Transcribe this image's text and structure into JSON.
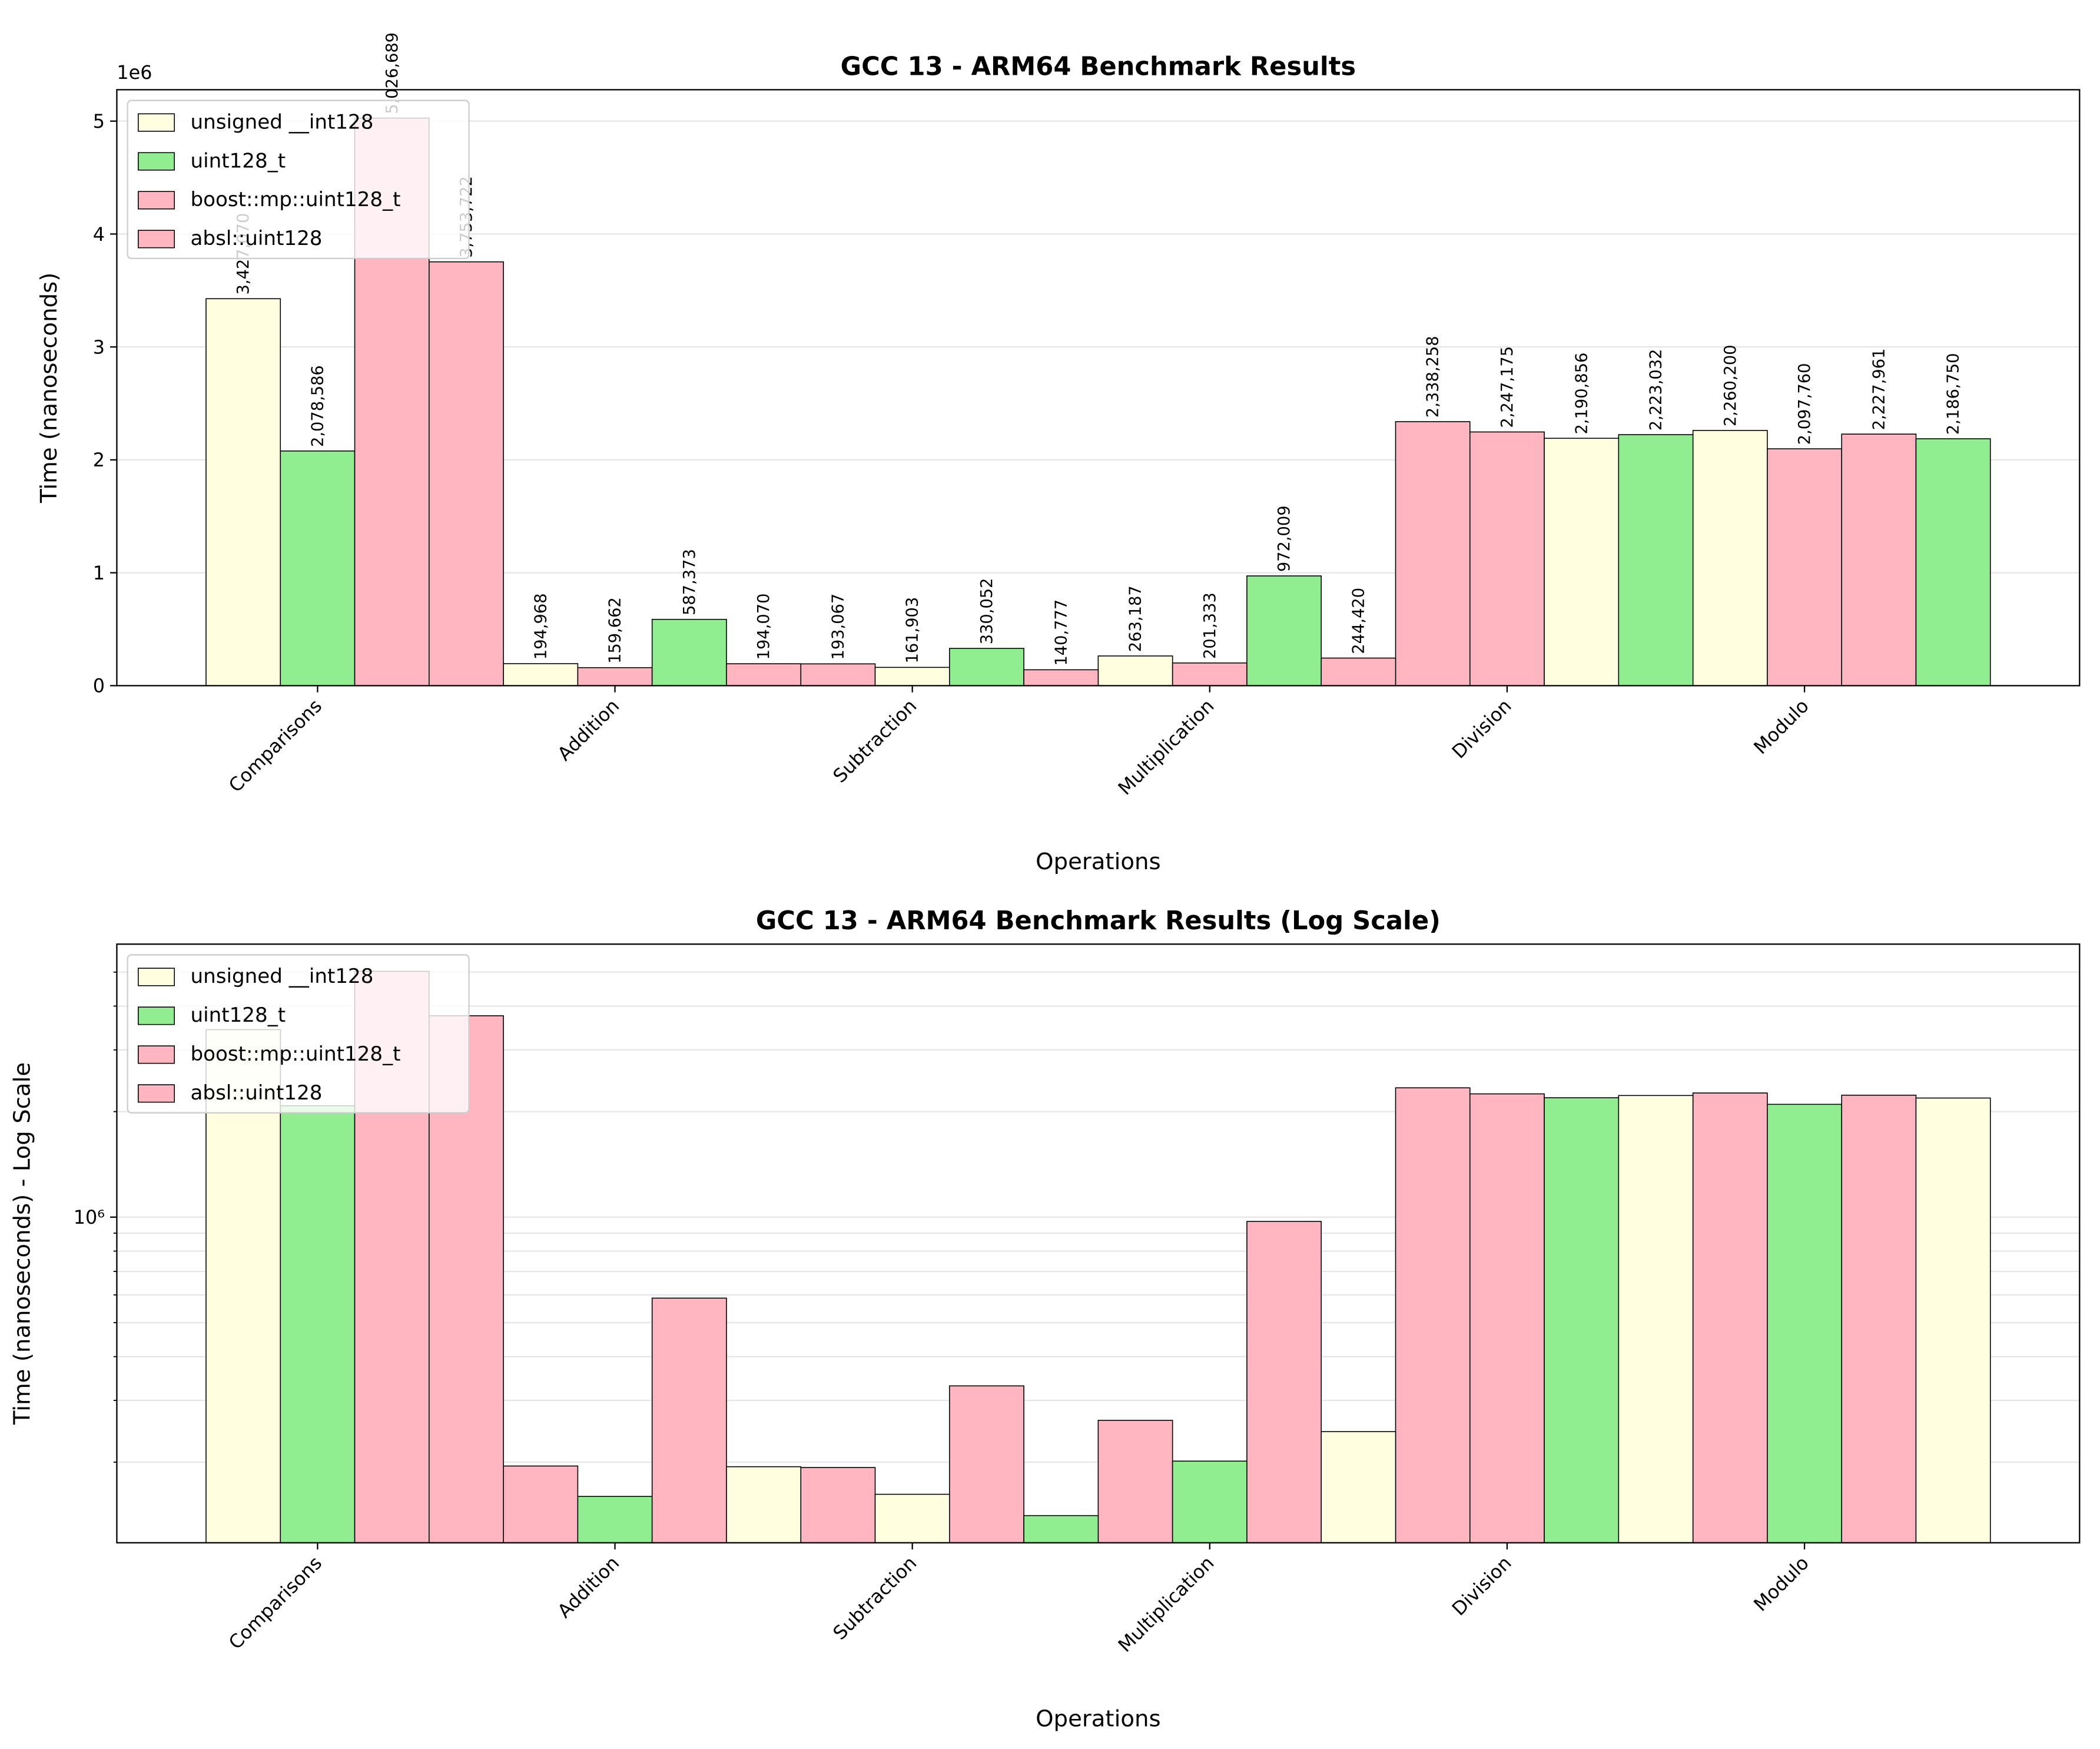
{
  "chart_data": [
    {
      "type": "bar",
      "title": "GCC 13 - ARM64 Benchmark Results",
      "x_label": "Operations",
      "y_label": "Time (nanoseconds)",
      "y_offset_label": "1e6",
      "categories": [
        "Comparisons",
        "Addition",
        "Subtraction",
        "Multiplication",
        "Division",
        "Modulo"
      ],
      "series": [
        {
          "name": "unsigned __int128",
          "color": "#ffffe0",
          "values": [
            3427070,
            194968,
            193067,
            263187,
            2338258,
            2260200
          ],
          "value_labels": [
            "3,427,070",
            "194,968",
            "193,067",
            "263,187",
            "2,338,258",
            "2,260,200"
          ],
          "bar_colors": [
            "#ffffe0",
            "#ffffe0",
            "#ffb6c1",
            "#ffffe0",
            "#ffb6c1",
            "#ffffe0"
          ]
        },
        {
          "name": "uint128_t",
          "color": "#90ee90",
          "values": [
            2078586,
            159662,
            161903,
            201333,
            2247175,
            2097760
          ],
          "value_labels": [
            "2,078,586",
            "159,662",
            "161,903",
            "201,333",
            "2,247,175",
            "2,097,760"
          ],
          "bar_colors": [
            "#90ee90",
            "#ffb6c1",
            "#ffffe0",
            "#ffb6c1",
            "#ffb6c1",
            "#ffb6c1"
          ]
        },
        {
          "name": "boost::mp::uint128_t",
          "color": "#ffb6c1",
          "values": [
            5026689,
            587373,
            330052,
            972009,
            2190856,
            2227961
          ],
          "value_labels": [
            "5,026,689",
            "587,373",
            "330,052",
            "972,009",
            "2,190,856",
            "2,227,961"
          ],
          "bar_colors": [
            "#ffb6c1",
            "#90ee90",
            "#90ee90",
            "#90ee90",
            "#ffffe0",
            "#ffb6c1"
          ]
        },
        {
          "name": "absl::uint128",
          "color": "#ffb6c1",
          "values": [
            3753722,
            194070,
            140777,
            244420,
            2223032,
            2186750
          ],
          "value_labels": [
            "3,753,722",
            "194,070",
            "140,777",
            "244,420",
            "2,223,032",
            "2,186,750"
          ],
          "bar_colors": [
            "#ffb6c1",
            "#ffb6c1",
            "#ffb6c1",
            "#ffb6c1",
            "#90ee90",
            "#90ee90"
          ]
        }
      ],
      "ylim": [
        0,
        5278023
      ],
      "yticks": [
        0,
        {
          "value": 1000000,
          "label": "1"
        },
        {
          "value": 2000000,
          "label": "2"
        },
        {
          "value": 3000000,
          "label": "3"
        },
        {
          "value": 4000000,
          "label": "4"
        },
        {
          "value": 5000000,
          "label": "5"
        }
      ],
      "grid": true,
      "legend": "upper-left",
      "log_y": false
    },
    {
      "type": "bar",
      "title": "GCC 13 - ARM64 Benchmark Results (Log Scale)",
      "x_label": "Operations",
      "y_label": "Time (nanoseconds) - Log Scale",
      "categories": [
        "Comparisons",
        "Addition",
        "Subtraction",
        "Multiplication",
        "Division",
        "Modulo"
      ],
      "series": [
        {
          "name": "unsigned __int128",
          "color": "#ffffe0",
          "values": [
            3427070,
            194968,
            193067,
            263187,
            2338258,
            2260200
          ],
          "bar_colors": [
            "#ffffe0",
            "#ffb6c1",
            "#ffb6c1",
            "#ffb6c1",
            "#ffb6c1",
            "#ffb6c1"
          ]
        },
        {
          "name": "uint128_t",
          "color": "#90ee90",
          "values": [
            2078586,
            159662,
            161903,
            201333,
            2247175,
            2097760
          ],
          "bar_colors": [
            "#90ee90",
            "#90ee90",
            "#ffffe0",
            "#90ee90",
            "#ffb6c1",
            "#90ee90"
          ]
        },
        {
          "name": "boost::mp::uint128_t",
          "color": "#ffb6c1",
          "values": [
            5026689,
            587373,
            330052,
            972009,
            2190856,
            2227961
          ],
          "bar_colors": [
            "#ffb6c1",
            "#ffb6c1",
            "#ffb6c1",
            "#ffb6c1",
            "#90ee90",
            "#ffb6c1"
          ]
        },
        {
          "name": "absl::uint128",
          "color": "#ffb6c1",
          "values": [
            3753722,
            194070,
            140777,
            244420,
            2223032,
            2186750
          ],
          "bar_colors": [
            "#ffb6c1",
            "#ffffe0",
            "#90ee90",
            "#ffffe0",
            "#ffffe0",
            "#ffffe0"
          ]
        }
      ],
      "ylim": [
        117760,
        6009000
      ],
      "yticks": [
        {
          "value": 1000000,
          "label": "10⁶"
        }
      ],
      "minor_yticks": [
        200000,
        300000,
        400000,
        500000,
        600000,
        700000,
        800000,
        900000,
        2000000,
        3000000,
        4000000,
        5000000
      ],
      "grid": true,
      "legend": "upper-left",
      "log_y": true
    }
  ]
}
